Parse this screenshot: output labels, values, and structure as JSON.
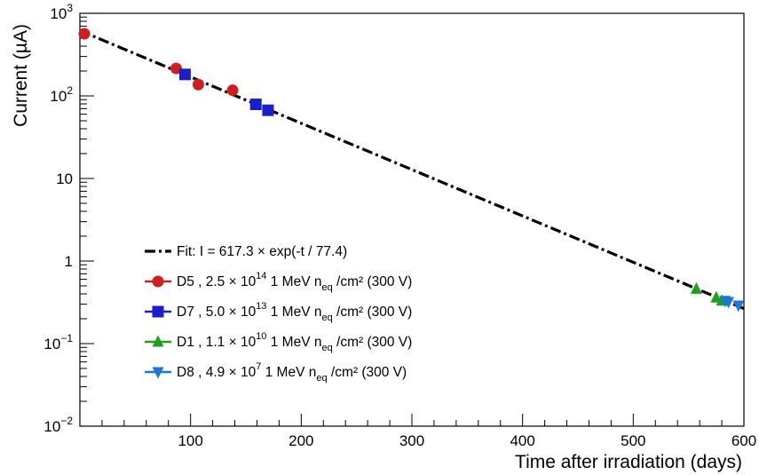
{
  "chart_data": {
    "type": "scatter",
    "xlabel": "Time after irradiation (days)",
    "ylabel": "Current (µA)",
    "xlim": [
      0,
      600
    ],
    "ylim": [
      0.01,
      1000
    ],
    "yscale": "log",
    "grid": false,
    "legend_position": "bottom-left",
    "x_ticks": [
      "100",
      "200",
      "300",
      "400",
      "500",
      "600"
    ],
    "y_ticks": [
      {
        "base": "10",
        "exp": "3"
      },
      {
        "base": "10",
        "exp": "2"
      },
      {
        "base": "10",
        "exp": ""
      },
      {
        "base": "1",
        "exp": ""
      },
      {
        "base": "10",
        "exp": "−1"
      },
      {
        "base": "10",
        "exp": "−2"
      }
    ],
    "fit": {
      "label": "Fit: I = 617.3 × exp(-t / 77.4)",
      "amplitude": 617.3,
      "tau": 77.4,
      "color": "#000000",
      "style": "dash-dot"
    },
    "series": [
      {
        "name": "D5",
        "legend": {
          "pre": "D5 , 2.5 × 10",
          "exp": "14",
          "mid": " 1 MeV n",
          "sub": "eq",
          "post": " /cm² (300 V)"
        },
        "marker": "circle",
        "color": "#cc1f1f",
        "points": [
          [
            4,
            565
          ],
          [
            87,
            215
          ],
          [
            107,
            137
          ],
          [
            138,
            117
          ]
        ]
      },
      {
        "name": "D7",
        "legend": {
          "pre": "D7 , 5.0 × 10",
          "exp": "13",
          "mid": " 1 MeV n",
          "sub": "eq",
          "post": " /cm² (300 V)"
        },
        "marker": "square",
        "color": "#1c1fc4",
        "points": [
          [
            95,
            182
          ],
          [
            159,
            79
          ],
          [
            170,
            67
          ]
        ]
      },
      {
        "name": "D1",
        "legend": {
          "pre": "D1 , 1.1 × 10",
          "exp": "10",
          "mid": " 1 MeV n",
          "sub": "eq",
          "post": " /cm² (300 V)"
        },
        "marker": "triangle-up",
        "color": "#1f9e1f",
        "points": [
          [
            557,
            0.46
          ],
          [
            575,
            0.36
          ],
          [
            580,
            0.33
          ]
        ]
      },
      {
        "name": "D8",
        "legend": {
          "pre": "D8 , 4.9 × 10",
          "exp": "7",
          "mid": "  1 MeV n",
          "sub": "eq",
          "post": " /cm² (300 V)"
        },
        "marker": "triangle-down",
        "color": "#1f77d0",
        "points": [
          [
            583,
            0.33
          ],
          [
            586,
            0.32
          ],
          [
            595,
            0.29
          ]
        ]
      }
    ]
  }
}
